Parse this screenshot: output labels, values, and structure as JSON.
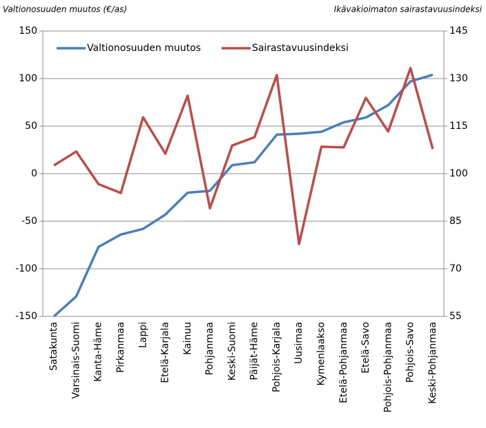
{
  "chart_data": {
    "type": "line",
    "ylabel": "Valtionosuuden muutos (€/as)",
    "y2label": "Ikävakioimaton sairastavuusindeksi",
    "categories": [
      "Satakunta",
      "Varsinais-Suomi",
      "Kanta-Häme",
      "Pirkanmaa",
      "Lappi",
      "Etelä-Karjala",
      "Kainuu",
      "Pohjanmaa",
      "Keski-Suomi",
      "Päijät-Häme",
      "Pohjois-Karjala",
      "Uusimaa",
      "Kymenlaakso",
      "Etelä-Pohjanmaa",
      "Etelä-Savo",
      "Pohjois-Pohjanmaa",
      "Pohjois-Savo",
      "Keski-Pohjanmaa"
    ],
    "series": [
      {
        "name": "Valtionosuuden muutos",
        "color": "#4a7ebb",
        "axis": "y",
        "values": [
          -150,
          -129,
          -77,
          -64,
          -58,
          -43,
          -20,
          -18,
          9,
          12,
          41,
          42,
          44,
          54,
          59,
          72,
          97,
          104
        ]
      },
      {
        "name": "Sairastavuusindeksi",
        "color": "#be4b48",
        "axis": "y2",
        "values": [
          102.6,
          107,
          96.7,
          93.9,
          117.8,
          106.3,
          124.6,
          89.1,
          108.9,
          111.5,
          131.1,
          77.8,
          108.5,
          108.3,
          123.9,
          113.3,
          133.3,
          107.8
        ]
      }
    ],
    "ylim": [
      -150,
      150
    ],
    "yticks": [
      -150,
      -100,
      -50,
      0,
      50,
      100,
      150
    ],
    "y2lim": [
      55,
      145
    ],
    "y2ticks": [
      55,
      70,
      85,
      100,
      115,
      130,
      145
    ],
    "grid": true,
    "legend": "top-left"
  }
}
